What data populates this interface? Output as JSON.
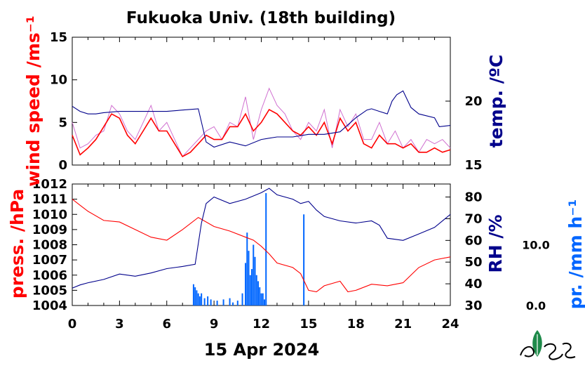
{
  "title": "Fukuoka Univ. (18th building)",
  "date_label": "15 Apr 2024",
  "colors": {
    "wind": "#ff0000",
    "wind_raw": "#d070d0",
    "temp": "#00008b",
    "press": "#ff0000",
    "rh": "#00008b",
    "precip": "#0066ff"
  },
  "logo": "leaf-logo",
  "chart_data": [
    {
      "type": "line",
      "ylabel_left": "wind speed /ms⁻¹",
      "ylabel_right": "temp. /ºC",
      "left_ticks": [
        "0",
        "5",
        "10",
        "15"
      ],
      "right_ticks": [
        "15",
        "20"
      ],
      "ylim_left": [
        0,
        15
      ],
      "ylim_right": [
        15,
        25
      ],
      "xlim": [
        0,
        24
      ],
      "series": [
        {
          "axis": "left",
          "style": "raw",
          "x": [
            0,
            0.5,
            1,
            1.5,
            2,
            2.5,
            3,
            3.5,
            4,
            4.5,
            5,
            5.5,
            6,
            6.5,
            7,
            7.5,
            8,
            8.5,
            9,
            9.5,
            10,
            10.5,
            11,
            11.5,
            12,
            12.5,
            13,
            13.5,
            14,
            14.5,
            15,
            15.5,
            16,
            16.5,
            17,
            17.5,
            18,
            18.5,
            19,
            19.5,
            20,
            20.5,
            21,
            21.5,
            22,
            22.5,
            23,
            23.5,
            24
          ],
          "y": [
            5,
            2,
            2.5,
            3.5,
            4,
            7,
            6,
            4,
            3,
            5,
            7,
            4,
            5,
            3,
            1,
            2,
            3,
            4,
            4.5,
            3,
            5,
            4.5,
            8,
            3,
            6.5,
            9,
            7,
            6,
            4,
            3,
            5,
            4,
            6.5,
            2,
            6.5,
            4.5,
            6,
            3,
            3,
            5,
            2.5,
            4,
            2,
            3,
            1.5,
            3,
            2.5,
            3,
            2
          ]
        },
        {
          "axis": "left",
          "style": "smooth",
          "x": [
            0,
            0.5,
            1,
            1.5,
            2,
            2.5,
            3,
            3.5,
            4,
            4.5,
            5,
            5.5,
            6,
            6.5,
            7,
            7.5,
            8,
            8.5,
            9,
            9.5,
            10,
            10.5,
            11,
            11.5,
            12,
            12.5,
            13,
            13.5,
            14,
            14.5,
            15,
            15.5,
            16,
            16.5,
            17,
            17.5,
            18,
            18.5,
            19,
            19.5,
            20,
            20.5,
            21,
            21.5,
            22,
            22.5,
            23,
            23.5,
            24
          ],
          "y": [
            3.5,
            1.2,
            2,
            3,
            4.5,
            6,
            5.5,
            3.5,
            2.5,
            4,
            5.5,
            4,
            4,
            2.5,
            1,
            1.5,
            2.5,
            3.5,
            3,
            3,
            4.5,
            4.5,
            6,
            4,
            5,
            6.5,
            6,
            5,
            4,
            3.5,
            4.5,
            3.5,
            5,
            2.5,
            5.5,
            4,
            5,
            2.5,
            2,
            3.5,
            2.5,
            2.5,
            2,
            2.5,
            1.5,
            1.5,
            2,
            1.5,
            1.8
          ]
        },
        {
          "name": "temp",
          "axis": "right",
          "x": [
            0,
            0.5,
            1,
            1.5,
            2,
            3,
            4,
            5,
            6,
            7,
            8,
            8.5,
            9,
            10,
            11,
            12,
            13,
            14,
            15,
            16,
            17,
            18,
            18.7,
            19,
            19.5,
            20,
            20.3,
            20.6,
            21,
            21.5,
            22,
            23,
            23.3,
            24
          ],
          "y": [
            19.6,
            19.2,
            19.0,
            19.0,
            19.1,
            19.2,
            19.2,
            19.2,
            19.2,
            19.3,
            19.4,
            16.8,
            16.4,
            16.8,
            16.5,
            17.0,
            17.2,
            17.2,
            17.4,
            17.4,
            17.6,
            18.7,
            19.3,
            19.4,
            19.2,
            19.0,
            20.0,
            20.5,
            20.8,
            19.5,
            19.0,
            18.7,
            18.0,
            18.1
          ]
        }
      ]
    },
    {
      "type": "line",
      "ylabel_left": "press. /hPa",
      "ylabel_right": "RH /%",
      "ylabel_far_right": "pr. /mm h⁻¹",
      "left_ticks": [
        "1004",
        "1005",
        "1006",
        "1007",
        "1008",
        "1009",
        "1010",
        "1011",
        "1012"
      ],
      "right_ticks": [
        "30",
        "40",
        "50",
        "60",
        "70",
        "80"
      ],
      "precip_ticks": [
        "0.0",
        "10.0"
      ],
      "ylim_left": [
        1004,
        1012
      ],
      "ylim_right": [
        30,
        86
      ],
      "ylim_precip": [
        0,
        20
      ],
      "xlim": [
        0,
        24
      ],
      "xlabel_ticks": [
        "0",
        "3",
        "6",
        "9",
        "12",
        "15",
        "18",
        "21",
        "24"
      ],
      "series": [
        {
          "name": "press",
          "axis": "left",
          "x": [
            0,
            0.5,
            1,
            2,
            3,
            4,
            5,
            6,
            7,
            8,
            9,
            10,
            11,
            11.5,
            12,
            12.5,
            13,
            14,
            14.5,
            15,
            15.5,
            16,
            17,
            17.5,
            18,
            19,
            20,
            21,
            22,
            23,
            24
          ],
          "y": [
            1011.0,
            1010.6,
            1010.2,
            1009.6,
            1009.5,
            1009.0,
            1008.5,
            1008.3,
            1009.0,
            1009.8,
            1009.2,
            1008.9,
            1008.5,
            1008.3,
            1007.9,
            1007.4,
            1006.8,
            1006.5,
            1006.1,
            1005.0,
            1004.9,
            1005.3,
            1005.6,
            1004.9,
            1005.0,
            1005.4,
            1005.3,
            1005.5,
            1006.5,
            1007.0,
            1007.2
          ]
        },
        {
          "name": "rh",
          "axis": "right",
          "x": [
            0,
            0.5,
            1,
            2,
            3,
            4,
            5,
            6,
            7,
            7.8,
            8.2,
            8.5,
            9,
            10,
            11,
            12,
            12.5,
            13,
            14,
            14.5,
            15,
            15.5,
            16,
            17,
            18,
            19,
            19.5,
            20,
            21,
            22,
            23,
            24
          ],
          "y": [
            38,
            39.5,
            40.5,
            42,
            44.5,
            43.5,
            45,
            47,
            48,
            49,
            68,
            77,
            80,
            77,
            79,
            82,
            84,
            81,
            79,
            77,
            78,
            74,
            71,
            69,
            68,
            69,
            67,
            61,
            60,
            63,
            66,
            72
          ]
        },
        {
          "name": "precip",
          "axis": "precip",
          "x": [
            7.7,
            7.8,
            7.9,
            8,
            8.1,
            8.2,
            8.4,
            8.6,
            8.8,
            9.2,
            9.6,
            10,
            10.2,
            10.5,
            10.8,
            11,
            11.1,
            11.2,
            11.3,
            11.4,
            11.5,
            11.6,
            11.7,
            11.8,
            11.9,
            12,
            12.1,
            12.2,
            12.3,
            14.7
          ],
          "y": [
            3.5,
            3,
            2.5,
            2,
            1.5,
            2,
            1.2,
            1.5,
            1,
            0.8,
            1,
            1.2,
            0.5,
            0.8,
            2,
            7,
            12,
            9,
            5,
            6,
            10,
            8,
            5,
            4,
            3,
            2,
            2,
            1,
            18.5,
            15
          ]
        }
      ]
    }
  ]
}
